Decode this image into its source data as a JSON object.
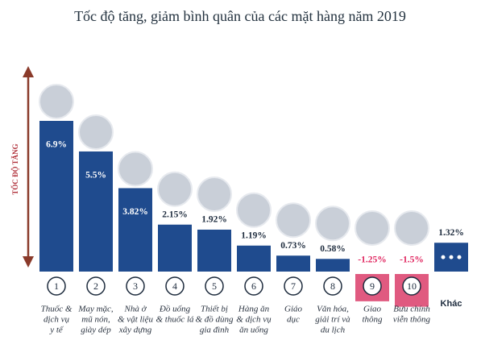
{
  "chart_data": {
    "type": "bar",
    "title": "Tốc độ tăng, giảm bình quân của các mặt hàng năm 2019",
    "y_label": "TỐC ĐỘ TĂNG",
    "categories": [
      [
        "Thuốc &",
        "dịch vụ",
        "y tế"
      ],
      [
        "May mặc,",
        "mũ nón,",
        "giày dép"
      ],
      [
        "Nhà ở",
        "& vật liệu",
        "xây dựng"
      ],
      [
        "Đồ uống",
        "& thuốc lá"
      ],
      [
        "Thiết bị",
        "& đồ dùng",
        "gia đình"
      ],
      [
        "Hàng ăn",
        "& dịch vụ",
        "ăn uống"
      ],
      [
        "Giáo",
        "dục"
      ],
      [
        "Văn hóa,",
        "giải trí và",
        "du lịch"
      ],
      [
        "Giao",
        "thông"
      ],
      [
        "Bưu chính",
        "viễn thông"
      ],
      [
        "Khác"
      ]
    ],
    "badges": [
      "1",
      "2",
      "3",
      "4",
      "5",
      "6",
      "7",
      "8",
      "9",
      "10"
    ],
    "values": [
      6.9,
      5.5,
      3.82,
      2.15,
      1.92,
      1.19,
      0.73,
      0.58,
      -1.25,
      -1.5,
      1.32
    ],
    "value_labels": [
      "6.9%",
      "5.5%",
      "3.82%",
      "2.15%",
      "1.92%",
      "1.19%",
      "0.73%",
      "0.58%",
      "-1.25%",
      "-1.5%",
      "1.32%"
    ],
    "color": "#1f4b8e",
    "negative_color": "#e05a80"
  }
}
